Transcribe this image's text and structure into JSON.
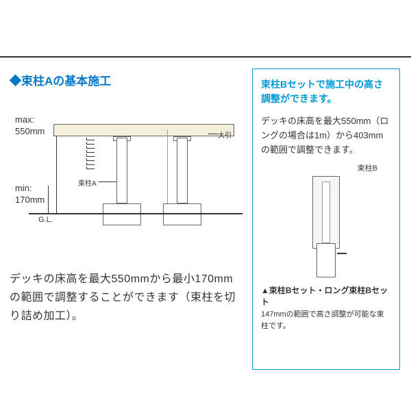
{
  "colors": {
    "accent": "#0078c8",
    "accent_light": "#0098d8",
    "text": "#333333",
    "deck_fill": "#f3efda",
    "line": "#666666",
    "bg": "#ffffff"
  },
  "section_a": {
    "title": "◆束柱Aの基本施工",
    "max_label_1": "max:",
    "max_label_2": "550mm",
    "min_label_1": "min:",
    "min_label_2": "170mm",
    "gl": "G.L.",
    "obiki": "大引",
    "post_a": "束柱A",
    "description": "デッキの床高を最大550mmから最小170mmの範囲で調整することができます（束柱を切り詰め加工）。"
  },
  "section_b": {
    "title": "束柱Bセットで施工中の高さ調整ができます。",
    "description": "デッキの床高を最大550mm（ロングの場合は1m）から403mmの範囲で調整できます。",
    "post_b_label": "束柱B",
    "caption_title": "▲束柱Bセット・ロング束柱Bセット",
    "caption_text": "147mmの範囲で高さ調整が可能な束柱です。"
  },
  "dimensions": {
    "deck_height_max_mm": 550,
    "deck_height_min_mm": 170,
    "height_b_max_mm": 550,
    "height_b_long_max_m": 1,
    "height_b_min_mm": 403,
    "adjust_range_b_mm": 147
  }
}
